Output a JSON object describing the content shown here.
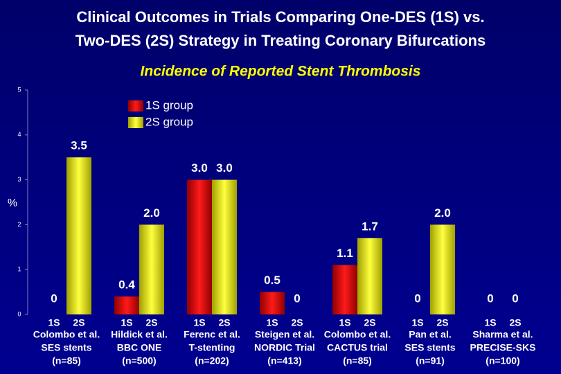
{
  "chart_data": {
    "type": "bar",
    "title": [
      "Clinical Outcomes in Trials Comparing One-DES (1S) vs.",
      "Two-DES (2S) Strategy in Treating Coronary Bifurcations"
    ],
    "subtitle": "Incidence of Reported Stent Thrombosis",
    "y_label": "%",
    "categories": [
      [
        "Colombo et al.",
        "SES stents",
        "(n=85)"
      ],
      [
        "Hildick et al.",
        "BBC ONE",
        "(n=500)"
      ],
      [
        "Ferenc et al.",
        "T-stenting",
        "(n=202)"
      ],
      [
        "Steigen et al.",
        "NORDIC Trial",
        "(n=413)"
      ],
      [
        "Colombo et al.",
        "CACTUS trial",
        "(n=85)"
      ],
      [
        "Pan et al.",
        "SES stents",
        "(n=91)"
      ],
      [
        "Sharma et al.",
        "PRECISE-SKS",
        "(n=100)"
      ]
    ],
    "group_labels": [
      "1S",
      "2S"
    ],
    "series": [
      {
        "name": "1S group",
        "color": "#e00000",
        "values": [
          0,
          0.4,
          3.0,
          0.5,
          1.1,
          0,
          0
        ],
        "value_labels": [
          "0",
          "0.4",
          "3.0",
          "0.5",
          "1.1",
          "0",
          "0"
        ]
      },
      {
        "name": "2S group",
        "color": "#ffff00",
        "values": [
          3.5,
          2.0,
          3.0,
          0,
          1.7,
          2.0,
          0
        ],
        "value_labels": [
          "3.5",
          "2.0",
          "3.0",
          "0",
          "1.7",
          "2.0",
          "0"
        ]
      }
    ],
    "ylim": [
      0,
      5
    ],
    "yticks": [
      0,
      1,
      2,
      3,
      4,
      5
    ]
  }
}
